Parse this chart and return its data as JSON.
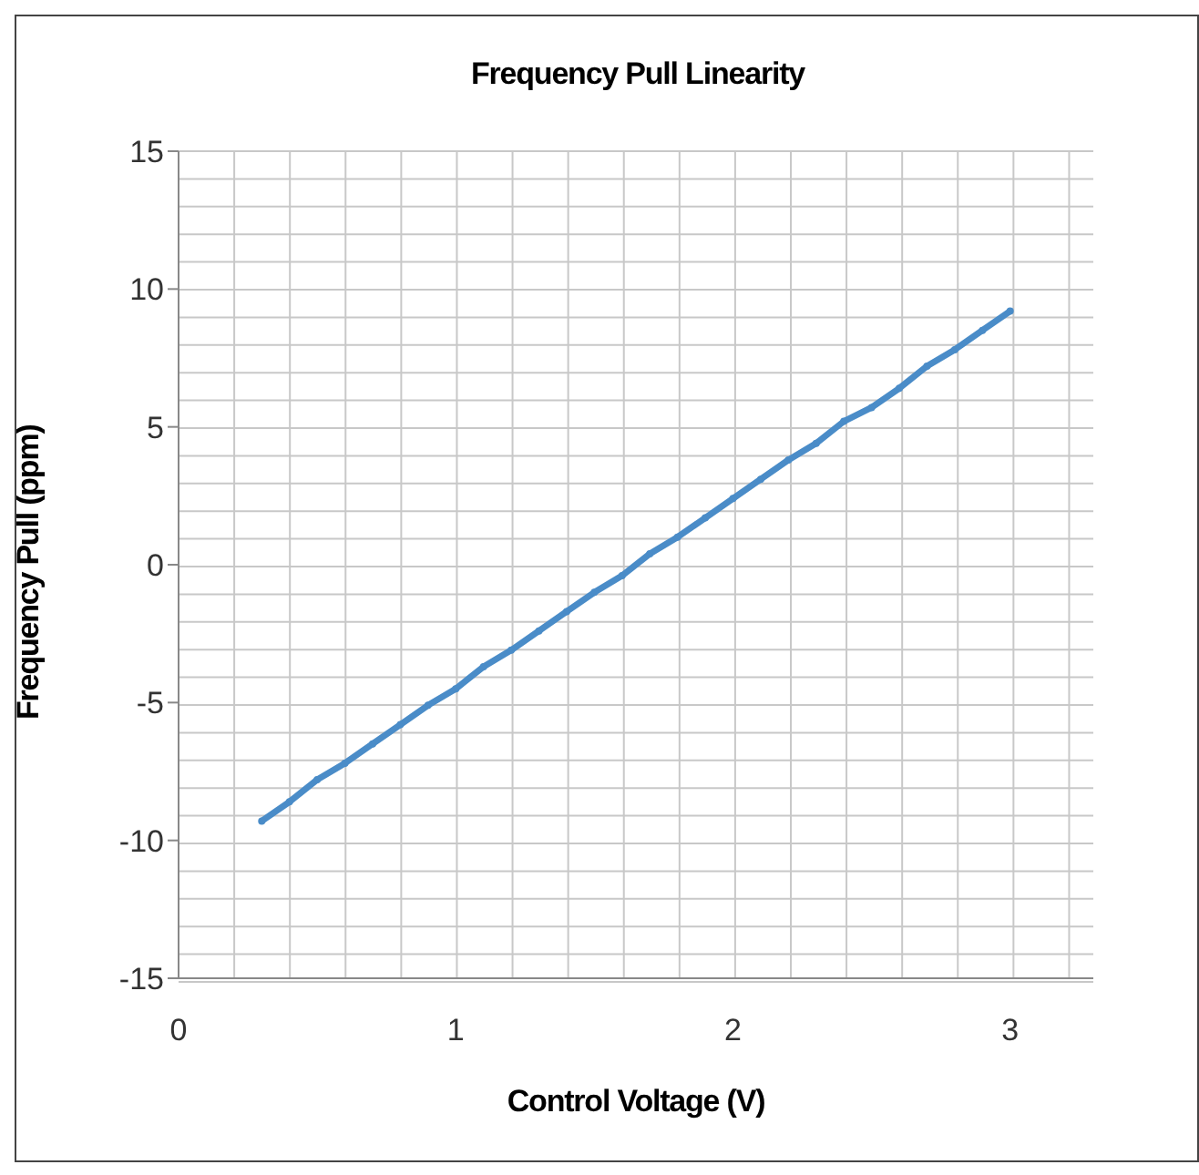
{
  "chart_data": {
    "type": "line",
    "title": "Frequency Pull Linearity",
    "xlabel": "Control Voltage (V)",
    "ylabel": "Frequency Pull (ppm)",
    "x": [
      0.3,
      0.4,
      0.5,
      0.6,
      0.7,
      0.8,
      0.9,
      1.0,
      1.1,
      1.2,
      1.3,
      1.4,
      1.5,
      1.6,
      1.7,
      1.8,
      1.9,
      2.0,
      2.1,
      2.2,
      2.3,
      2.4,
      2.5,
      2.6,
      2.7,
      2.8,
      2.9,
      3.0
    ],
    "series": [
      {
        "color": "#4a8cc8",
        "values": [
          -9.3,
          -8.6,
          -7.8,
          -7.2,
          -6.5,
          -5.8,
          -5.1,
          -4.5,
          -3.7,
          -3.1,
          -2.4,
          -1.7,
          -1.0,
          -0.4,
          0.4,
          1.0,
          1.7,
          2.4,
          3.1,
          3.8,
          4.4,
          5.2,
          5.7,
          6.4,
          7.2,
          7.8,
          8.5,
          9.2
        ]
      }
    ],
    "xlim": [
      0,
      3.3
    ],
    "xticks": [
      0,
      1,
      2,
      3
    ],
    "ylim": [
      -15,
      15
    ],
    "yticks": [
      -15,
      -10,
      -5,
      0,
      5,
      10,
      15
    ],
    "grid": true,
    "marker": "circle",
    "line_style": "solid"
  }
}
